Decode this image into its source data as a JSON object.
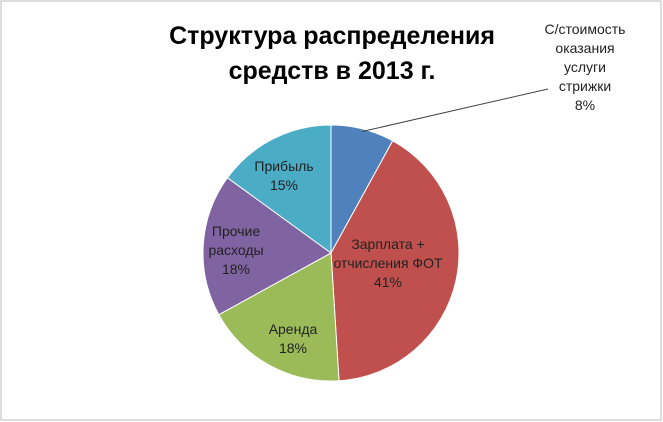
{
  "chart_data": {
    "type": "pie",
    "title": "Структура распределения\nсредств в 2013 г.",
    "categories": [
      "С/стоимость\nоказания\nуслуги\nстрижки",
      "Зарплата +\nотчисления ФОТ",
      "Аренда",
      "Прочие\nрасходы",
      "Прибыль"
    ],
    "values": [
      8,
      41,
      18,
      18,
      15
    ],
    "value_labels": [
      "8%",
      "41%",
      "18%",
      "18%",
      "15%"
    ],
    "colors": [
      "#4f81bd",
      "#c0504d",
      "#9bbb59",
      "#8064a2",
      "#4bacc6"
    ]
  }
}
